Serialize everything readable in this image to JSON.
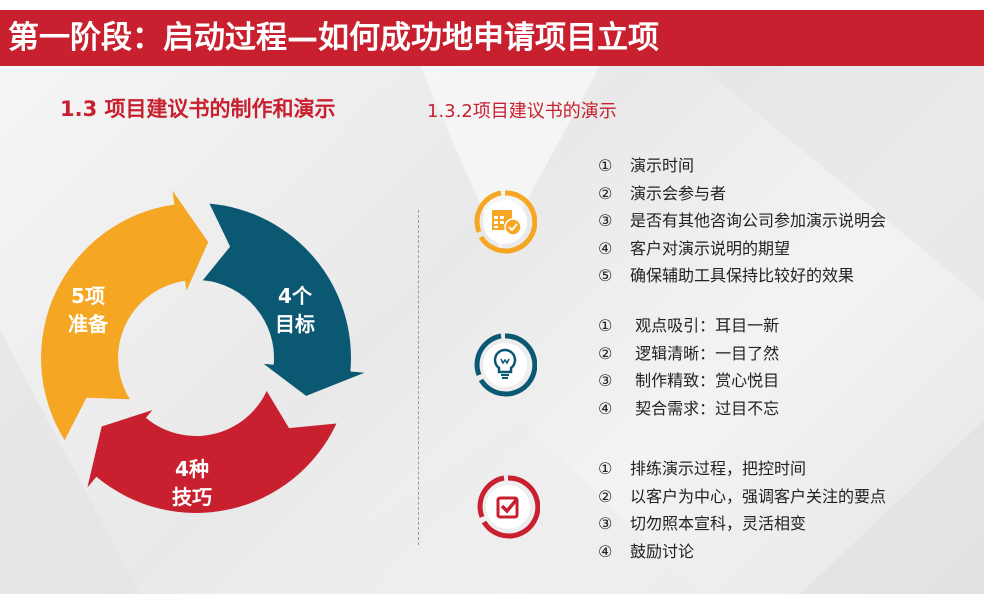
{
  "header": {
    "title": "第一阶段：启动过程—如何成功地申请项目立项"
  },
  "section": {
    "title": "1.3 项目建议书的制作和演示",
    "subtitle": "1.3.2项目建议书的演示"
  },
  "colors": {
    "red": "#c8202f",
    "orange": "#f5a623",
    "teal": "#0b5872"
  },
  "cycle": [
    {
      "line1": "5项",
      "line2": "准备",
      "color": "#f5a623"
    },
    {
      "line1": "4个",
      "line2": "目标",
      "color": "#0b5872"
    },
    {
      "line1": "4种",
      "line2": "技巧",
      "color": "#c8202f"
    }
  ],
  "groups": [
    {
      "icon": "calendar-clock-icon",
      "color": "#f5a623",
      "items": [
        {
          "num": "①",
          "text": "演示时间"
        },
        {
          "num": "②",
          "text": "演示会参与者"
        },
        {
          "num": "③",
          "text": "是否有其他咨询公司参加演示说明会"
        },
        {
          "num": "④",
          "text": "客户对演示说明的期望"
        },
        {
          "num": "⑤",
          "text": "确保辅助工具保持比较好的效果"
        }
      ]
    },
    {
      "icon": "lightbulb-icon",
      "color": "#0b5872",
      "items": [
        {
          "num": "①",
          "text": " 观点吸引：耳目一新"
        },
        {
          "num": "②",
          "text": " 逻辑清晰：一目了然"
        },
        {
          "num": "③",
          "text": " 制作精致：赏心悦目"
        },
        {
          "num": "④",
          "text": " 契合需求：过目不忘"
        }
      ]
    },
    {
      "icon": "checkbox-icon",
      "color": "#c8202f",
      "items": [
        {
          "num": "①",
          "text": "排练演示过程，把控时间"
        },
        {
          "num": "②",
          "text": "以客户为中心，强调客户关注的要点"
        },
        {
          "num": "③",
          "text": "切勿照本宣科，灵活相变"
        },
        {
          "num": "④",
          "text": "鼓励讨论"
        }
      ]
    }
  ]
}
